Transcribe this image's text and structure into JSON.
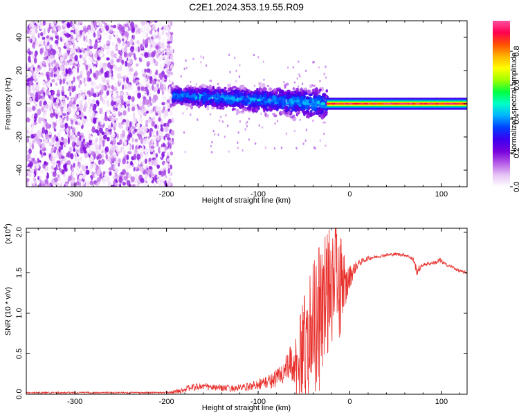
{
  "title": "C2E1.2024.353.19.55.R09",
  "chart_data": [
    {
      "type": "heatmap",
      "xlabel": "Height of straight line (km)",
      "ylabel": "Frequency (Hz)",
      "xlim": [
        -353,
        128
      ],
      "ylim": [
        -50,
        50
      ],
      "xticks": [
        -300,
        -200,
        -100,
        0,
        100
      ],
      "yticks": [
        -40,
        -20,
        0,
        20,
        40
      ],
      "colorbar": {
        "label": "Normalized spectral amplitude",
        "range": [
          0,
          0.98
        ],
        "ticks": [
          0.0,
          0.2,
          0.4,
          0.6,
          0.8
        ],
        "tick_labels": [
          "0.0",
          "0.2",
          "0.4",
          "0.6",
          "0.8"
        ],
        "colors": [
          "#ffffff",
          "#e6c3f5",
          "#b45ae6",
          "#7800dc",
          "#3a00f0",
          "#0040ff",
          "#00b4ff",
          "#00ffc8",
          "#00ff40",
          "#a0ff00",
          "#ffff00",
          "#ffb400",
          "#ff5000",
          "#ff0050",
          "#ff50a0"
        ]
      },
      "regions": [
        {
          "x_range": [
            -353,
            -193
          ],
          "y_range": [
            -50,
            50
          ],
          "level": "0.0-0.15"
        },
        {
          "x_range": [
            -193,
            -25
          ],
          "center_freq_start": 5,
          "center_freq_end": 0,
          "half_width": 7,
          "level": "0.15-0.45"
        },
        {
          "x_range": [
            -25,
            128
          ],
          "center_freq": 0,
          "half_width": 2,
          "level": "0.5-0.98"
        }
      ]
    },
    {
      "type": "line",
      "xlabel": "Height of straight line (km)",
      "ylabel": "SNR (10 * v/v)",
      "yscale_label": "(x10",
      "yscale_exp": "4",
      "xlim": [
        -353,
        128
      ],
      "ylim": [
        0,
        2.05
      ],
      "xticks": [
        -300,
        -200,
        -100,
        0,
        100
      ],
      "yticks": [
        0.0,
        0.5,
        1.0,
        1.5,
        2.0
      ],
      "ytick_labels": [
        "0.0",
        "0.5",
        "1.0",
        "1.5",
        "2.0"
      ],
      "series": [
        {
          "color": "#e8302c",
          "x": [
            -353,
            -300,
            -250,
            -200,
            -185,
            -175,
            -160,
            -150,
            -140,
            -130,
            -120,
            -110,
            -100,
            -90,
            -80,
            -70,
            -60,
            -55,
            -50,
            -45,
            -40,
            -35,
            -30,
            -25,
            -20,
            -15,
            -10,
            -5,
            0,
            5,
            10,
            20,
            30,
            40,
            50,
            60,
            65,
            70,
            73,
            76,
            80,
            90,
            95,
            98,
            100,
            105,
            110,
            115,
            120,
            128
          ],
          "y": [
            0.02,
            0.02,
            0.02,
            0.02,
            0.04,
            0.08,
            0.1,
            0.08,
            0.08,
            0.07,
            0.08,
            0.09,
            0.13,
            0.15,
            0.2,
            0.3,
            0.4,
            0.5,
            0.65,
            0.8,
            0.95,
            1.05,
            1.2,
            1.3,
            1.45,
            1.55,
            1.4,
            1.3,
            1.45,
            1.55,
            1.62,
            1.68,
            1.7,
            1.72,
            1.73,
            1.72,
            1.7,
            1.65,
            1.52,
            1.55,
            1.6,
            1.62,
            1.63,
            1.65,
            1.64,
            1.6,
            1.58,
            1.55,
            1.52,
            1.5
          ],
          "noise_amplitude": [
            0.01,
            0.01,
            0.01,
            0.01,
            0.03,
            0.04,
            0.05,
            0.04,
            0.04,
            0.04,
            0.04,
            0.05,
            0.07,
            0.08,
            0.12,
            0.18,
            0.3,
            0.35,
            0.45,
            0.5,
            0.55,
            0.6,
            0.6,
            0.55,
            0.55,
            0.5,
            0.45,
            0.3,
            0.15,
            0.08,
            0.04,
            0.03,
            0.02,
            0.02,
            0.02,
            0.02,
            0.02,
            0.04,
            0.06,
            0.04,
            0.02,
            0.02,
            0.03,
            0.05,
            0.03,
            0.02,
            0.02,
            0.02,
            0.02,
            0.02
          ]
        }
      ]
    }
  ]
}
